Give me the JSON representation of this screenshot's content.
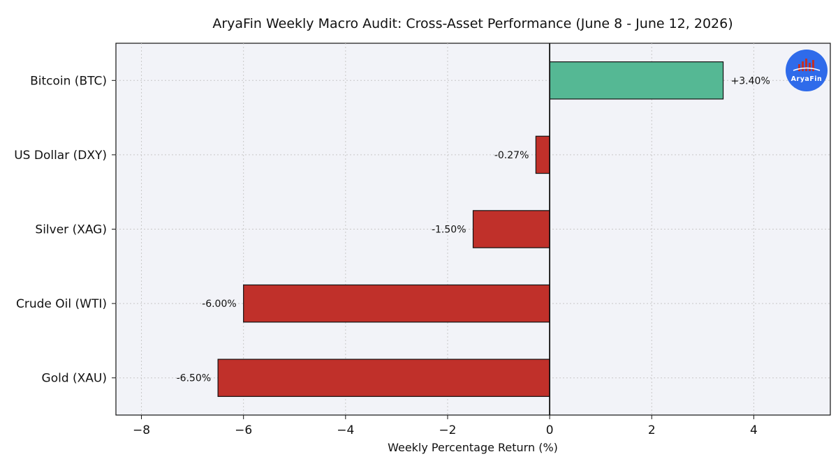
{
  "chart_data": {
    "type": "bar",
    "orientation": "horizontal",
    "title": "AryaFin Weekly Macro Audit: Cross-Asset Performance (June 8 - June 12, 2026)",
    "xlabel": "Weekly Percentage Return (%)",
    "ylabel": "",
    "xlim": [
      -8.5,
      5.5
    ],
    "xticks": [
      -8,
      -6,
      -4,
      -2,
      0,
      2,
      4
    ],
    "xtick_labels": [
      "−8",
      "−6",
      "−4",
      "−2",
      "0",
      "2",
      "4"
    ],
    "grid": true,
    "categories": [
      "Bitcoin (BTC)",
      "US Dollar (DXY)",
      "Silver (XAG)",
      "Crude Oil (WTI)",
      "Gold (XAU)"
    ],
    "values": [
      3.4,
      -0.27,
      -1.5,
      -6.0,
      -6.5
    ],
    "data_labels": [
      "+3.40%",
      "-0.27%",
      "-1.50%",
      "-6.00%",
      "-6.50%"
    ],
    "colors": {
      "positive": "#55b894",
      "negative": "#c0302a",
      "plot_background": "#f2f3f8",
      "grid": "#c8c8c8",
      "zero_line": "#111111"
    }
  },
  "logo": {
    "text": "AryaFin",
    "icon": "bar-chart-logo-icon",
    "color": "#2f6bea"
  }
}
